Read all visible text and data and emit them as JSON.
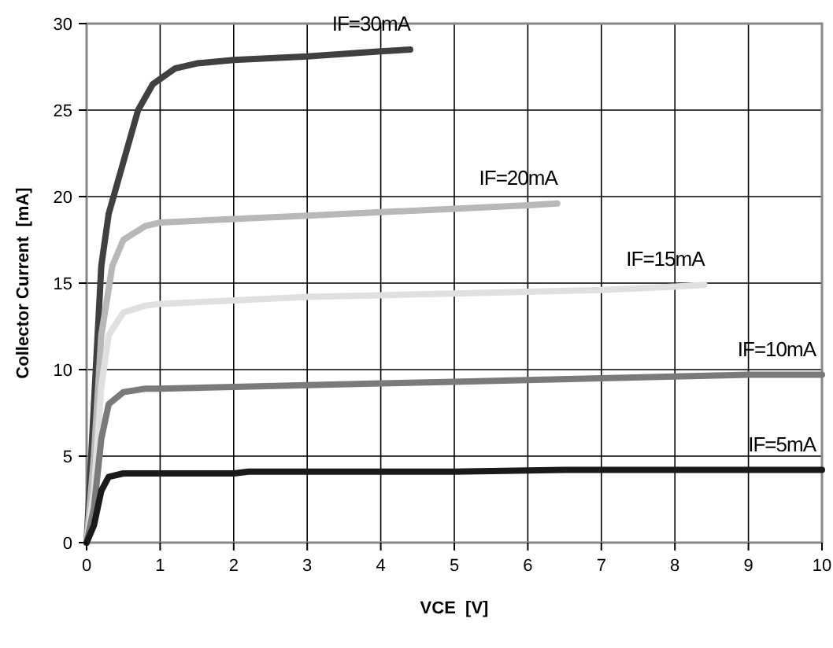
{
  "chart_data": {
    "type": "line",
    "xlabel": "VCE  [V]",
    "ylabel": "Collector Current  [mA]",
    "xlim": [
      0,
      10
    ],
    "ylim": [
      0,
      30
    ],
    "xticks": [
      0,
      1,
      2,
      3,
      4,
      5,
      6,
      7,
      8,
      9,
      10
    ],
    "yticks": [
      0,
      5,
      10,
      15,
      20,
      25,
      30
    ],
    "grid": true,
    "marker": "none",
    "line_style": "solid",
    "series": [
      {
        "name": "IF=30mA",
        "color": "#404040",
        "x": [
          0,
          0.1,
          0.2,
          0.3,
          0.5,
          0.7,
          0.9,
          1.2,
          1.5,
          2,
          3,
          4,
          4.4
        ],
        "values": [
          0,
          8,
          16,
          19,
          22,
          25,
          26.5,
          27.4,
          27.7,
          27.9,
          28.1,
          28.4,
          28.5
        ]
      },
      {
        "name": "IF=20mA",
        "color": "#b8b8b8",
        "x": [
          0,
          0.1,
          0.2,
          0.35,
          0.5,
          0.8,
          1,
          2,
          3,
          4,
          5,
          6,
          6.4
        ],
        "values": [
          0,
          5,
          12,
          16,
          17.5,
          18.3,
          18.5,
          18.7,
          18.9,
          19.1,
          19.3,
          19.5,
          19.6
        ]
      },
      {
        "name": "IF=15mA",
        "color": "#e0e0e0",
        "x": [
          0,
          0.1,
          0.2,
          0.3,
          0.5,
          0.8,
          1,
          2,
          3,
          4,
          5,
          6,
          7,
          8,
          8.4
        ],
        "values": [
          0,
          3,
          9,
          12,
          13.3,
          13.7,
          13.8,
          14,
          14.2,
          14.3,
          14.4,
          14.5,
          14.6,
          14.8,
          14.9
        ]
      },
      {
        "name": "IF=10mA",
        "color": "#7a7a7a",
        "x": [
          0,
          0.1,
          0.2,
          0.3,
          0.5,
          0.8,
          1,
          2,
          3,
          4,
          5,
          6,
          7,
          8,
          9,
          10
        ],
        "values": [
          0,
          2,
          6,
          8,
          8.7,
          8.9,
          8.9,
          9,
          9.1,
          9.2,
          9.3,
          9.4,
          9.5,
          9.6,
          9.7,
          9.7
        ]
      },
      {
        "name": "IF=5mA",
        "color": "#1a1a1a",
        "x": [
          0,
          0.1,
          0.2,
          0.3,
          0.5,
          1,
          2,
          2.2,
          3,
          5,
          6.5,
          8,
          10
        ],
        "values": [
          0,
          1,
          3,
          3.8,
          4,
          4,
          4,
          4.1,
          4.1,
          4.1,
          4.2,
          4.2,
          4.2
        ]
      }
    ]
  }
}
